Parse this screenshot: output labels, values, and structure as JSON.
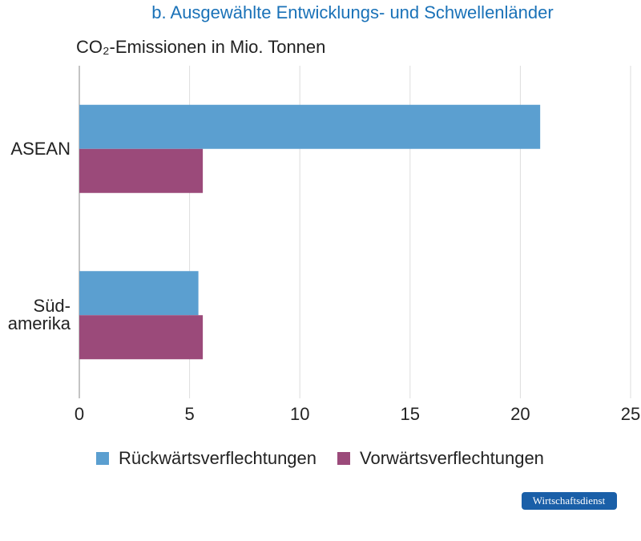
{
  "chart_data": {
    "type": "barh",
    "title": "b. Ausgewählte Entwicklungs- und Schwellenländer",
    "subtitle": "CO₂-Emissionen in Mio. Tonnen",
    "categories": [
      "ASEAN",
      "Süd-\namerika"
    ],
    "series": [
      {
        "name": "Rückwärtsverflechtungen",
        "color": "#5b9fd0",
        "values": [
          20.9,
          5.4
        ]
      },
      {
        "name": "Vorwärtsverflechtungen",
        "color": "#9b4a7a",
        "values": [
          5.6,
          5.6
        ]
      }
    ],
    "xlim": [
      0,
      25
    ],
    "xticks": [
      0,
      5,
      10,
      15,
      20,
      25
    ],
    "grid": true
  },
  "badge": "Wirtschaftsdienst"
}
